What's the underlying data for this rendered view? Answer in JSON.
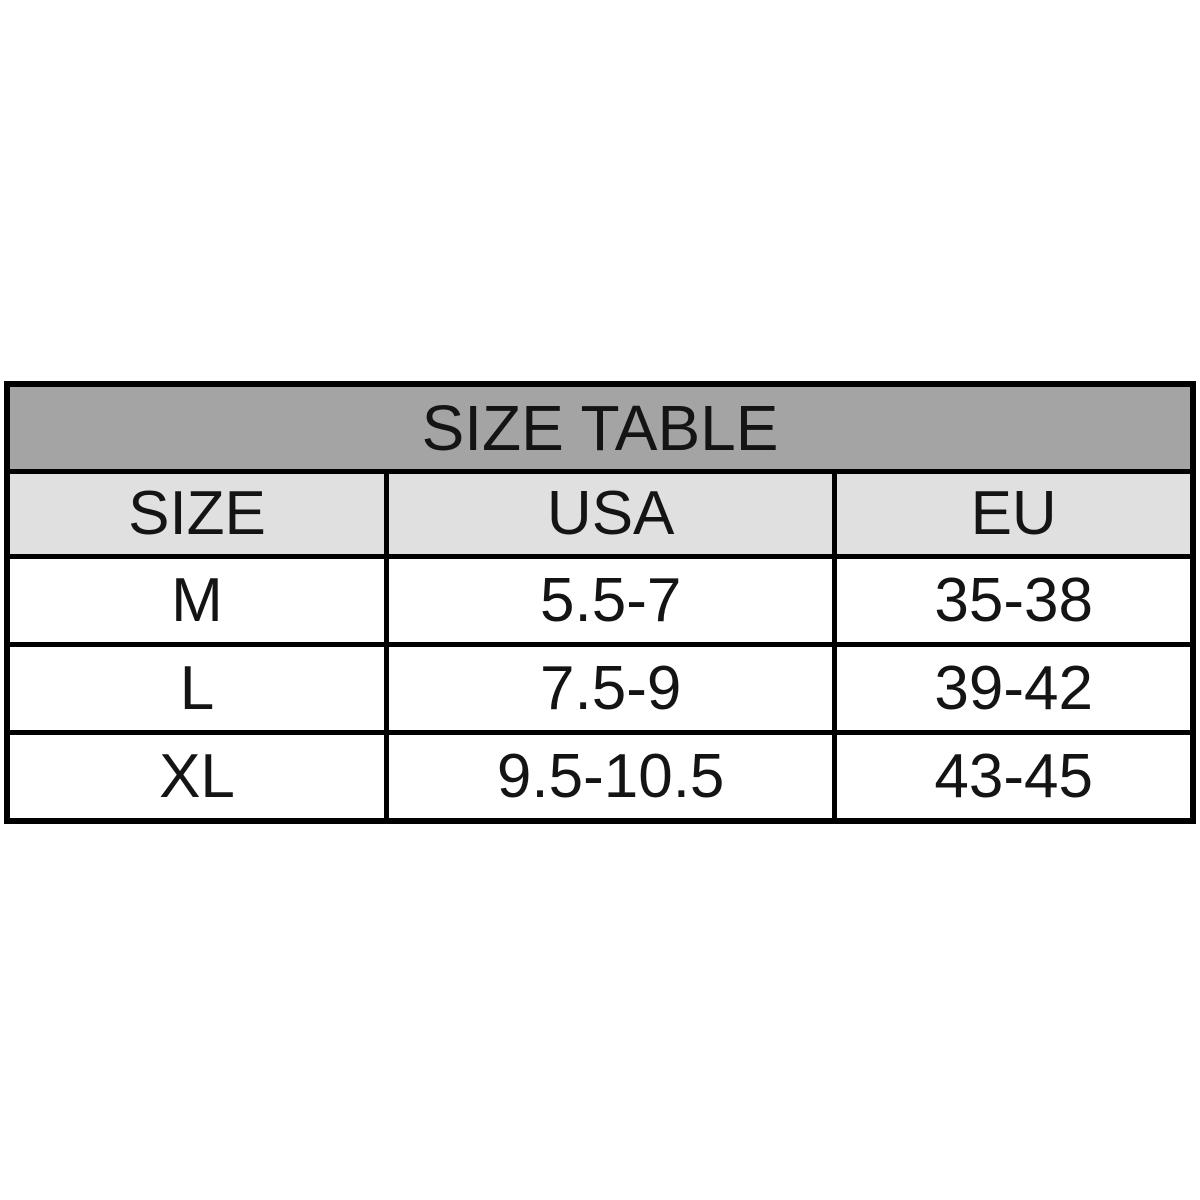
{
  "table": {
    "title": "SIZE TABLE",
    "columns": [
      "SIZE",
      "USA",
      "EU"
    ],
    "rows": [
      {
        "size": "M",
        "usa": "5.5-7",
        "eu": "35-38"
      },
      {
        "size": "L",
        "usa": "7.5-9",
        "eu": "39-42"
      },
      {
        "size": "XL",
        "usa": "9.5-10.5",
        "eu": "43-45"
      }
    ],
    "colors": {
      "page_bg": "#ffffff",
      "title_bg": "#a4a4a4",
      "header_bg": "#e0e0e0",
      "row_bg": "#ffffff",
      "border": "#000000",
      "text": "#141414"
    }
  }
}
